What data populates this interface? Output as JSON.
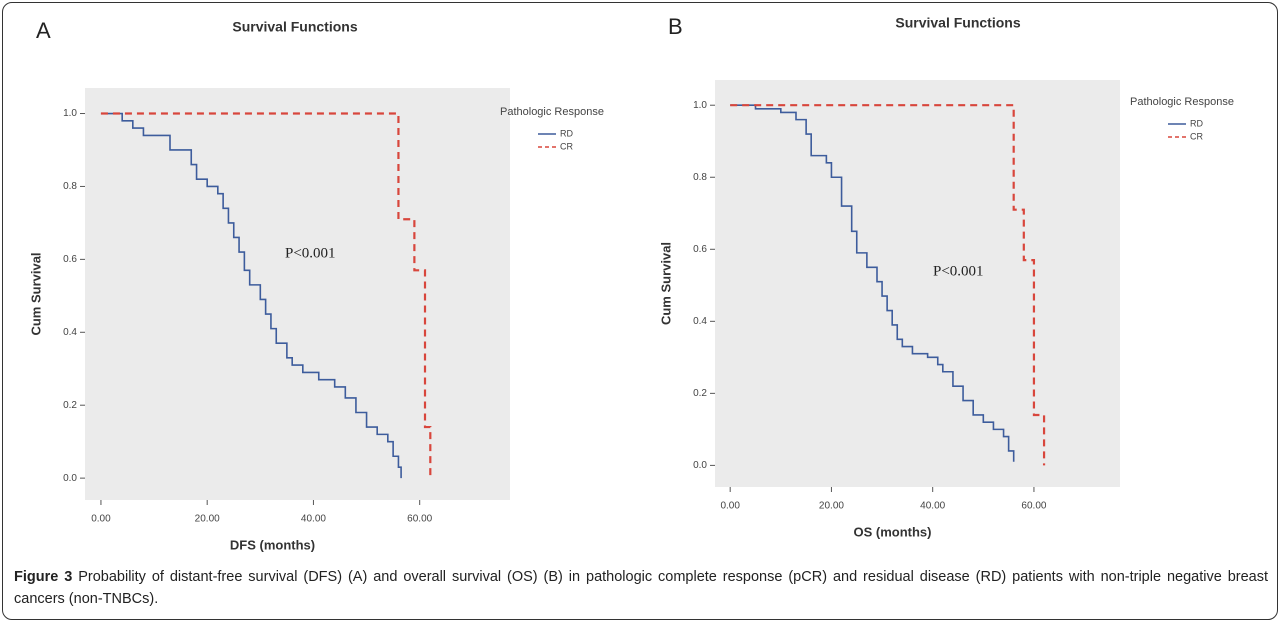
{
  "chart_data": [
    {
      "type": "step",
      "panel": "A",
      "title": "Survival Functions",
      "x_label": "DFS (months)",
      "y_label": "Cum Survival",
      "annotation": "P<0.001",
      "legend_title": "Pathologic Response",
      "xlim": [
        -3,
        77
      ],
      "ylim": [
        -0.06,
        1.07
      ],
      "xticks": [
        {
          "value": 0,
          "label": "0.00"
        },
        {
          "value": 20,
          "label": "20.00"
        },
        {
          "value": 40,
          "label": "40.00"
        },
        {
          "value": 60,
          "label": "60.00"
        }
      ],
      "yticks": [
        {
          "value": 0,
          "label": "0.0"
        },
        0.2,
        0.4,
        0.6,
        0.8,
        {
          "value": 1,
          "label": "1.0"
        }
      ],
      "series": [
        {
          "name": "RD",
          "color": "#3d5c9c",
          "dash": false,
          "x": [
            0,
            4,
            6,
            8,
            13,
            17,
            18,
            20,
            22,
            23,
            24,
            25,
            26,
            27,
            28,
            30,
            31,
            32,
            33,
            35,
            36,
            38,
            41,
            44,
            46,
            48,
            50,
            52,
            54,
            55,
            56,
            56.5
          ],
          "values": [
            1.0,
            0.98,
            0.96,
            0.94,
            0.9,
            0.86,
            0.82,
            0.8,
            0.78,
            0.74,
            0.7,
            0.66,
            0.62,
            0.57,
            0.53,
            0.49,
            0.45,
            0.41,
            0.37,
            0.33,
            0.31,
            0.29,
            0.27,
            0.25,
            0.22,
            0.18,
            0.14,
            0.12,
            0.1,
            0.06,
            0.03,
            0.0
          ]
        },
        {
          "name": "CR",
          "color": "#d8463c",
          "dash": true,
          "x": [
            0,
            56,
            59,
            61,
            62
          ],
          "values": [
            1.0,
            0.71,
            0.57,
            0.14,
            0.0
          ]
        }
      ]
    },
    {
      "type": "step",
      "panel": "B",
      "title": "Survival Functions",
      "x_label": "OS (months)",
      "y_label": "Cum Survival",
      "annotation": "P<0.001",
      "legend_title": "Pathologic Response",
      "xlim": [
        -3,
        77
      ],
      "ylim": [
        -0.06,
        1.07
      ],
      "xticks": [
        {
          "value": 0,
          "label": "0.00"
        },
        {
          "value": 20,
          "label": "20.00"
        },
        {
          "value": 40,
          "label": "40.00"
        },
        {
          "value": 60,
          "label": "60.00"
        }
      ],
      "yticks": [
        {
          "value": 0,
          "label": "0.0"
        },
        0.2,
        0.4,
        0.6,
        0.8,
        {
          "value": 1,
          "label": "1.0"
        }
      ],
      "series": [
        {
          "name": "RD",
          "color": "#3d5c9c",
          "dash": false,
          "x": [
            0,
            5,
            10,
            13,
            15,
            16,
            19,
            20,
            22,
            24,
            25,
            27,
            29,
            30,
            31,
            32,
            33,
            34,
            36,
            39,
            41,
            42,
            44,
            46,
            48,
            50,
            52,
            54,
            55,
            56
          ],
          "values": [
            1.0,
            0.99,
            0.98,
            0.96,
            0.92,
            0.86,
            0.84,
            0.8,
            0.72,
            0.65,
            0.59,
            0.55,
            0.51,
            0.47,
            0.43,
            0.39,
            0.35,
            0.33,
            0.31,
            0.3,
            0.28,
            0.26,
            0.22,
            0.18,
            0.14,
            0.12,
            0.1,
            0.08,
            0.04,
            0.01
          ]
        },
        {
          "name": "CR",
          "color": "#d8463c",
          "dash": true,
          "x": [
            0,
            56,
            58,
            60,
            62
          ],
          "values": [
            1.0,
            0.71,
            0.57,
            0.14,
            0.0
          ]
        }
      ]
    }
  ],
  "caption": {
    "label": "Figure 3",
    "text": "Probability of distant-free survival (DFS) (A) and overall survival (OS) (B) in pathologic complete response (pCR) and residual disease (RD) patients with non-triple negative breast cancers (non-TNBCs)."
  }
}
